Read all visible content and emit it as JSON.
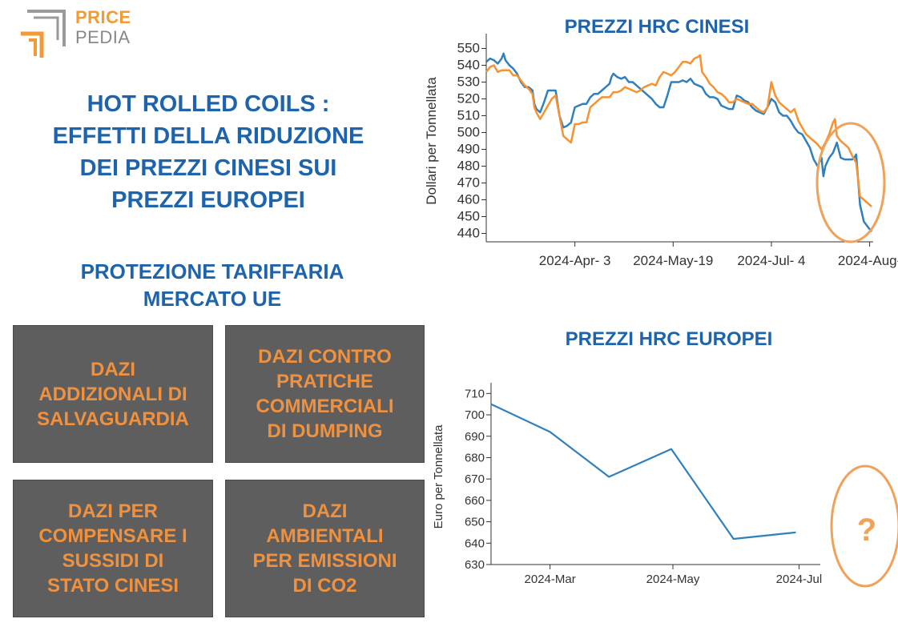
{
  "logo": {
    "line1": "PRICE",
    "line2": "PEDIA"
  },
  "headline": {
    "lines": [
      "HOT ROLLED COILS :",
      "EFFETTI DELLA RIDUZIONE",
      "DEI PREZZI CINESI SUI",
      "PREZZI EUROPEI"
    ]
  },
  "protection": {
    "lines": [
      "PROTEZIONE TARIFFARIA",
      "MERCATO UE"
    ]
  },
  "boxes": [
    {
      "lines": [
        "DAZI",
        "ADDIZIONALI DI",
        "SALVAGUARDIA"
      ]
    },
    {
      "lines": [
        "DAZI CONTRO",
        "PRATICHE",
        "COMMERCIALI",
        "DI DUMPING"
      ]
    },
    {
      "lines": [
        "DAZI PER",
        "COMPENSARE I",
        "SUSSIDI DI",
        "STATO CINESI"
      ]
    },
    {
      "lines": [
        "DAZI",
        "AMBIENTALI",
        "PER EMISSIONI",
        "DI CO2"
      ]
    }
  ],
  "colors": {
    "blue_line": "#2f80bd",
    "orange_line": "#f7922f",
    "title_blue": "#1e64ad",
    "box_gray": "#5e5e5e",
    "box_text": "#f0913f",
    "highlight": "#f0a15a"
  },
  "question_mark": "?",
  "chart_data": [
    {
      "type": "line",
      "title": "PREZZI HRC CINESI",
      "ylabel": "Dollari per Tonnellata",
      "ylim": [
        435,
        555
      ],
      "yticks": [
        440,
        450,
        460,
        470,
        480,
        490,
        500,
        510,
        520,
        530,
        540,
        550
      ],
      "x_domain": [
        0,
        100
      ],
      "xticks": [
        {
          "x": 23,
          "label": "2024-Apr- 3"
        },
        {
          "x": 48.5,
          "label": "2024-May-19"
        },
        {
          "x": 74,
          "label": "2024-Jul- 4"
        },
        {
          "x": 99.5,
          "label": "2024-Aug-"
        }
      ],
      "series": [
        {
          "color": "#2f80bd",
          "points": [
            [
              0,
              542
            ],
            [
              1,
              544
            ],
            [
              2,
              543
            ],
            [
              3,
              541
            ],
            [
              4,
              544
            ],
            [
              4.5,
              547
            ],
            [
              5,
              543
            ],
            [
              6,
              540
            ],
            [
              7,
              538
            ],
            [
              8,
              535
            ],
            [
              9,
              530
            ],
            [
              10,
              527
            ],
            [
              11,
              527
            ],
            [
              12,
              525
            ],
            [
              12.5,
              517
            ],
            [
              13,
              514
            ],
            [
              14,
              512
            ],
            [
              15,
              518
            ],
            [
              16,
              525
            ],
            [
              17,
              525
            ],
            [
              18,
              525
            ],
            [
              19,
              510
            ],
            [
              20,
              503
            ],
            [
              21,
              504
            ],
            [
              22,
              506
            ],
            [
              23,
              515
            ],
            [
              24,
              516
            ],
            [
              25,
              517
            ],
            [
              26,
              517
            ],
            [
              27,
              521
            ],
            [
              28,
              523
            ],
            [
              29,
              523
            ],
            [
              30,
              525
            ],
            [
              31,
              527
            ],
            [
              32,
              529
            ],
            [
              32.5,
              533
            ],
            [
              33,
              535
            ],
            [
              34,
              533
            ],
            [
              35,
              532
            ],
            [
              36,
              533
            ],
            [
              37,
              530
            ],
            [
              38,
              530
            ],
            [
              39,
              528
            ],
            [
              40,
              526
            ],
            [
              41,
              524
            ],
            [
              42,
              522
            ],
            [
              43,
              520
            ],
            [
              44,
              517
            ],
            [
              45,
              515
            ],
            [
              46,
              515
            ],
            [
              47,
              522
            ],
            [
              48,
              530
            ],
            [
              49,
              530
            ],
            [
              50,
              530
            ],
            [
              51,
              531
            ],
            [
              52,
              530
            ],
            [
              53,
              532
            ],
            [
              54,
              529
            ],
            [
              55,
              528
            ],
            [
              56,
              527
            ],
            [
              57,
              523
            ],
            [
              58,
              521
            ],
            [
              59,
              521
            ],
            [
              60,
              520
            ],
            [
              61,
              516
            ],
            [
              62,
              515
            ],
            [
              63,
              514
            ],
            [
              64,
              514
            ],
            [
              65,
              522
            ],
            [
              66,
              521
            ],
            [
              67,
              519
            ],
            [
              68,
              518
            ],
            [
              69,
              515
            ],
            [
              70,
              513
            ],
            [
              71,
              512
            ],
            [
              72,
              511
            ],
            [
              73,
              515
            ],
            [
              74,
              520
            ],
            [
              75,
              518
            ],
            [
              76,
              512
            ],
            [
              77,
              510
            ],
            [
              78,
              510
            ],
            [
              79,
              507
            ],
            [
              80,
              503
            ],
            [
              81,
              500
            ],
            [
              82,
              499
            ],
            [
              83,
              495
            ],
            [
              84,
              491
            ],
            [
              85,
              484
            ],
            [
              86,
              480
            ],
            [
              87,
              485
            ],
            [
              87.5,
              474
            ],
            [
              88,
              480
            ],
            [
              89,
              485
            ],
            [
              90,
              488
            ],
            [
              91,
              494
            ],
            [
              92,
              485
            ],
            [
              93,
              484
            ],
            [
              94,
              484
            ],
            [
              95,
              484
            ],
            [
              95.5,
              485
            ],
            [
              96,
              487
            ],
            [
              97,
              457
            ],
            [
              98,
              447
            ],
            [
              99,
              444
            ],
            [
              100,
              441
            ]
          ]
        },
        {
          "color": "#f7922f",
          "points": [
            [
              0,
              536
            ],
            [
              1,
              539
            ],
            [
              2,
              540
            ],
            [
              3,
              536
            ],
            [
              4,
              537
            ],
            [
              5,
              537
            ],
            [
              6,
              537
            ],
            [
              7,
              534
            ],
            [
              8,
              534
            ],
            [
              9,
              531
            ],
            [
              10,
              528
            ],
            [
              11,
              526
            ],
            [
              12,
              523
            ],
            [
              12.5,
              515
            ],
            [
              13,
              512
            ],
            [
              14,
              508
            ],
            [
              15,
              512
            ],
            [
              16,
              516
            ],
            [
              17,
              520
            ],
            [
              18,
              522
            ],
            [
              19,
              510
            ],
            [
              20,
              498
            ],
            [
              21,
              496
            ],
            [
              22,
              494
            ],
            [
              23,
              505
            ],
            [
              24,
              505
            ],
            [
              25,
              506
            ],
            [
              26,
              506
            ],
            [
              27,
              515
            ],
            [
              28,
              517
            ],
            [
              29,
              519
            ],
            [
              30,
              521
            ],
            [
              31,
              521
            ],
            [
              32,
              521
            ],
            [
              33,
              524
            ],
            [
              34,
              524
            ],
            [
              35,
              525
            ],
            [
              36,
              527
            ],
            [
              37,
              526
            ],
            [
              38,
              525
            ],
            [
              39,
              524
            ],
            [
              40,
              525
            ],
            [
              41,
              527
            ],
            [
              42,
              528
            ],
            [
              43,
              529
            ],
            [
              44,
              528
            ],
            [
              45,
              533
            ],
            [
              46,
              536
            ],
            [
              47,
              535
            ],
            [
              48,
              534
            ],
            [
              49,
              536
            ],
            [
              50,
              539
            ],
            [
              51,
              542
            ],
            [
              52,
              542
            ],
            [
              53,
              541
            ],
            [
              54,
              544
            ],
            [
              55,
              545
            ],
            [
              55.5,
              546
            ],
            [
              56,
              536
            ],
            [
              57,
              533
            ],
            [
              58,
              529
            ],
            [
              59,
              527
            ],
            [
              60,
              524
            ],
            [
              61,
              523
            ],
            [
              62,
              521
            ],
            [
              63,
              518
            ],
            [
              64,
              518
            ],
            [
              65,
              520
            ],
            [
              66,
              519
            ],
            [
              67,
              518
            ],
            [
              68,
              517
            ],
            [
              69,
              517
            ],
            [
              70,
              515
            ],
            [
              71,
              513
            ],
            [
              72,
              512
            ],
            [
              73,
              515
            ],
            [
              74,
              530
            ],
            [
              75,
              522
            ],
            [
              76,
              518
            ],
            [
              77,
              516
            ],
            [
              78,
              514
            ],
            [
              79,
              512
            ],
            [
              80,
              514
            ],
            [
              81,
              507
            ],
            [
              82,
              503
            ],
            [
              83,
              499
            ],
            [
              84,
              497
            ],
            [
              85,
              495
            ],
            [
              86,
              493
            ],
            [
              87,
              490
            ],
            [
              88,
              494
            ],
            [
              89,
              499
            ],
            [
              90,
              506
            ],
            [
              90.5,
              508
            ],
            [
              91,
              498
            ],
            [
              92,
              495
            ],
            [
              93,
              493
            ],
            [
              94,
              491
            ],
            [
              95,
              486
            ],
            [
              96,
              482
            ],
            [
              97,
              462
            ],
            [
              98,
              460
            ],
            [
              99,
              458
            ],
            [
              100,
              456
            ]
          ]
        }
      ]
    },
    {
      "type": "line",
      "title": "PREZZI HRC EUROPEI",
      "ylabel": "Euro per Tonnellata",
      "ylim": [
        630,
        712
      ],
      "yticks": [
        630,
        640,
        650,
        660,
        670,
        680,
        690,
        700,
        710
      ],
      "x_domain": [
        0,
        100
      ],
      "xticks": [
        {
          "x": 18,
          "label": "2024-Mar"
        },
        {
          "x": 55.5,
          "label": "2024-May"
        },
        {
          "x": 94,
          "label": "2024-Jul"
        }
      ],
      "series": [
        {
          "color": "#2f80bd",
          "points": [
            [
              0,
              705
            ],
            [
              18,
              692
            ],
            [
              36,
              671
            ],
            [
              55,
              684
            ],
            [
              74,
              642
            ],
            [
              93,
              645
            ]
          ]
        }
      ]
    }
  ]
}
